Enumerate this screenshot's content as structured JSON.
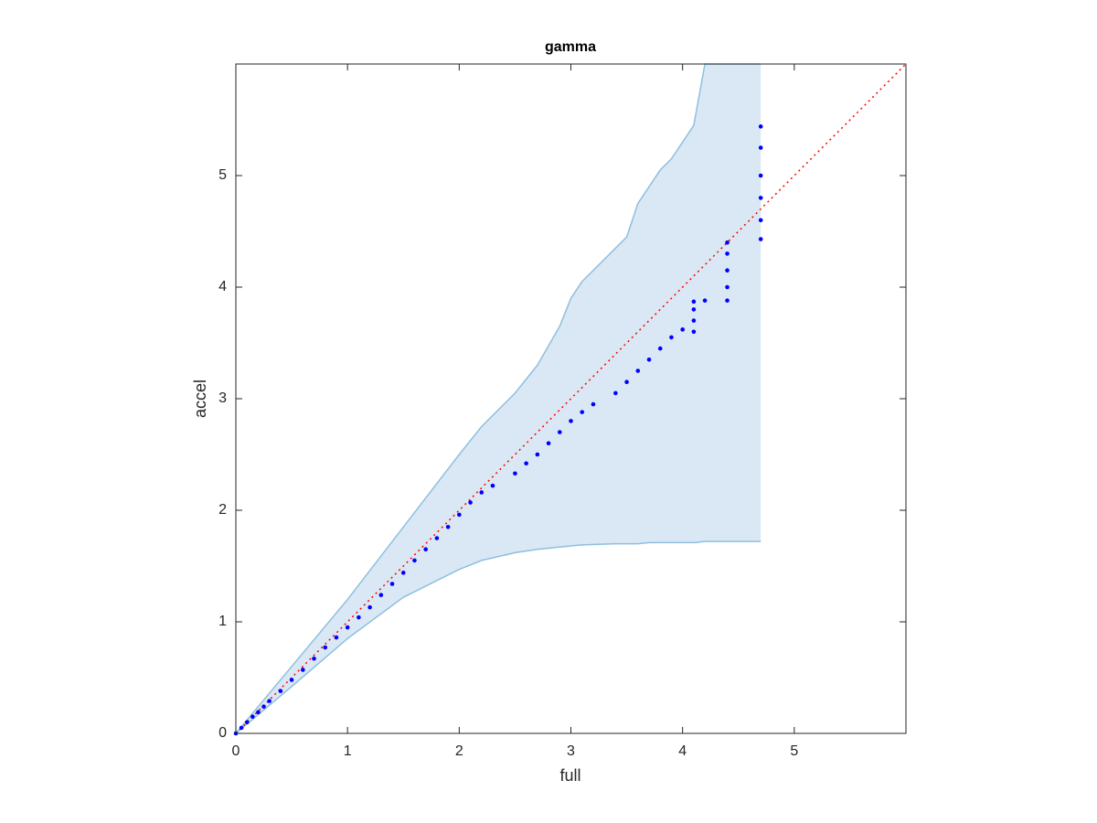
{
  "chart_data": {
    "type": "scatter",
    "title": "gamma",
    "xlabel": "full",
    "ylabel": "accel",
    "xlim": [
      0,
      6
    ],
    "ylim": [
      0,
      6
    ],
    "xticks": [
      0,
      1,
      2,
      3,
      4,
      5
    ],
    "yticks": [
      0,
      1,
      2,
      3,
      4,
      5
    ],
    "band": {
      "color": "#d9e8f4",
      "edge_color": "#8fbfdf",
      "x": [
        0,
        0.5,
        1,
        1.5,
        2,
        2.2,
        2.5,
        2.7,
        2.9,
        3,
        3.1,
        3.4,
        3.5,
        3.6,
        3.7,
        3.8,
        3.9,
        4.0,
        4.1,
        4.2,
        4.7
      ],
      "upper": [
        0,
        0.6,
        1.2,
        1.85,
        2.5,
        2.75,
        3.05,
        3.3,
        3.65,
        3.9,
        4.05,
        4.35,
        4.45,
        4.75,
        4.9,
        5.05,
        5.15,
        5.3,
        5.45,
        6,
        6
      ],
      "lower": [
        0,
        0.42,
        0.85,
        1.22,
        1.47,
        1.55,
        1.62,
        1.65,
        1.67,
        1.68,
        1.69,
        1.7,
        1.7,
        1.7,
        1.71,
        1.71,
        1.71,
        1.71,
        1.71,
        1.72,
        1.72
      ]
    },
    "reference": {
      "color": "#ff0000",
      "x": [
        0,
        6
      ],
      "values": [
        0,
        6
      ]
    },
    "series": [
      {
        "color": "#0000ff",
        "x": [
          0,
          0.05,
          0.1,
          0.15,
          0.2,
          0.25,
          0.3,
          0.4,
          0.5,
          0.6,
          0.7,
          0.8,
          0.9,
          1.0,
          1.1,
          1.2,
          1.3,
          1.4,
          1.5,
          1.6,
          1.7,
          1.8,
          1.9,
          2.0,
          2.1,
          2.2,
          2.3,
          2.5,
          2.6,
          2.7,
          2.8,
          2.9,
          3.0,
          3.1,
          3.2,
          3.4,
          3.5,
          3.6,
          3.7,
          3.8,
          3.9,
          4.0,
          4.1,
          4.1,
          4.1,
          4.1,
          4.2,
          4.4,
          4.4,
          4.4,
          4.4,
          4.4,
          4.7,
          4.7,
          4.7,
          4.7,
          4.7,
          4.7
        ],
        "values": [
          0,
          0.05,
          0.1,
          0.15,
          0.19,
          0.24,
          0.29,
          0.38,
          0.48,
          0.57,
          0.67,
          0.77,
          0.86,
          0.95,
          1.04,
          1.13,
          1.24,
          1.34,
          1.44,
          1.55,
          1.65,
          1.75,
          1.85,
          1.96,
          2.07,
          2.16,
          2.22,
          2.33,
          2.42,
          2.5,
          2.6,
          2.7,
          2.8,
          2.88,
          2.95,
          3.05,
          3.15,
          3.25,
          3.35,
          3.45,
          3.55,
          3.62,
          3.6,
          3.7,
          3.8,
          3.87,
          3.88,
          3.88,
          4.0,
          4.15,
          4.3,
          4.4,
          4.43,
          4.6,
          4.8,
          5.0,
          5.25,
          5.44
        ]
      }
    ]
  }
}
